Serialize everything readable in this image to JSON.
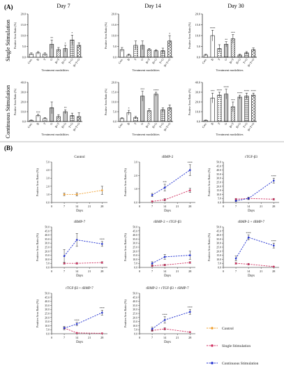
{
  "panel_a": {
    "label": "(A)",
    "day_headers": [
      "Day 7",
      "Day 14",
      "Day 30"
    ],
    "row_labels": [
      "Single Stimulation",
      "Continuous Stimulation"
    ],
    "categories": [
      "Con.",
      "B",
      "T",
      "O",
      "B+T",
      "B+O",
      "T+O",
      "B+T+O"
    ],
    "xlabel": "Treatment modalities",
    "ylabel": "Positive Area Ratio (%)"
  },
  "panel_b": {
    "label": "(B)",
    "xlabel": "Days",
    "ylabel": "Positive Area Ratio (%)",
    "legend": [
      {
        "name": "Control",
        "color": "#f0a030"
      },
      {
        "name": "Single Stimulation",
        "color": "#d03060"
      },
      {
        "name": "Continuous Stimulation",
        "color": "#2030d0"
      }
    ]
  },
  "chart_data": [
    {
      "type": "bar",
      "panel": "A",
      "row": "Single Stimulation",
      "day": "Day 7",
      "categories": [
        "Con.",
        "B",
        "T",
        "O",
        "B+T",
        "B+O",
        "T+O",
        "B+T+O"
      ],
      "values": [
        1.5,
        2,
        1.5,
        6,
        3.5,
        4,
        8,
        5.5
      ],
      "errors": [
        0.5,
        0.6,
        0.5,
        2,
        1,
        1.5,
        2.2,
        1.2
      ],
      "sig": [
        "",
        "",
        "",
        "**",
        "",
        "*",
        "*",
        ""
      ],
      "ylim": [
        0,
        20
      ],
      "yticks": [
        0,
        5,
        10,
        15,
        20
      ],
      "xlabel": "Treatment modalities",
      "ylabel": "Positive Area Ratio (%)"
    },
    {
      "type": "bar",
      "panel": "A",
      "row": "Single Stimulation",
      "day": "Day 14",
      "categories": [
        "Con.",
        "B",
        "T",
        "O",
        "B+T",
        "B+O",
        "T+O",
        "B+T+O"
      ],
      "values": [
        3.5,
        1,
        5.5,
        5.5,
        3.5,
        3,
        3,
        7.5
      ],
      "errors": [
        1,
        0.5,
        2,
        2,
        0.6,
        0.5,
        1.2,
        2.5
      ],
      "sig": [
        "",
        "",
        "",
        "",
        "",
        "",
        "",
        "*"
      ],
      "ylim": [
        0,
        20
      ],
      "yticks": [
        0,
        5,
        10,
        15,
        20
      ],
      "xlabel": "Treatment modalities",
      "ylabel": "Positive Area Ratio (%)"
    },
    {
      "type": "bar",
      "panel": "A",
      "row": "Single Stimulation",
      "day": "Day 30",
      "categories": [
        "Con.",
        "B",
        "T",
        "O",
        "B+T",
        "B+O",
        "T+O",
        "B+T+O"
      ],
      "values": [
        1,
        10,
        4,
        6,
        8.5,
        1,
        2,
        3.5
      ],
      "errors": [
        0.4,
        2.5,
        1.8,
        1.2,
        2,
        0.4,
        0.6,
        0.8
      ],
      "sig": [
        "",
        "****",
        "",
        "**",
        "***",
        "",
        "",
        ""
      ],
      "ylim": [
        0,
        20
      ],
      "yticks": [
        0,
        5,
        10,
        15,
        20
      ],
      "xlabel": "Treatment modalities",
      "ylabel": "Positive Area Ratio (%)"
    },
    {
      "type": "bar",
      "panel": "A",
      "row": "Continuous Stimulation",
      "day": "Day 7",
      "categories": [
        "Con.",
        "B",
        "T",
        "O",
        "B+T",
        "B+O",
        "T+O",
        "B+T+O"
      ],
      "values": [
        1,
        6,
        3,
        14,
        5,
        10,
        6,
        5
      ],
      "errors": [
        0.5,
        1.5,
        1,
        6,
        2,
        2,
        2.5,
        4
      ],
      "sig": [
        "",
        "***",
        "",
        "",
        "",
        "**",
        "",
        ""
      ],
      "ylim": [
        0,
        40
      ],
      "yticks": [
        0,
        10,
        20,
        30,
        40
      ],
      "xlabel": "Treatment modalities",
      "ylabel": "Positive Area Ratio (%)"
    },
    {
      "type": "bar",
      "panel": "A",
      "row": "Continuous Stimulation",
      "day": "Day 14",
      "categories": [
        "Con.",
        "B",
        "T",
        "O",
        "B+T",
        "B+O",
        "T+O",
        "B+T+O"
      ],
      "values": [
        1.5,
        4.5,
        2,
        13,
        5.5,
        14,
        6,
        7
      ],
      "errors": [
        0.4,
        1.2,
        0.6,
        2.5,
        1,
        1,
        1,
        1.5
      ],
      "sig": [
        "",
        "*",
        "",
        "***",
        "",
        "****",
        "",
        ""
      ],
      "ylim": [
        0,
        20
      ],
      "yticks": [
        0,
        5,
        10,
        15,
        20
      ],
      "xlabel": "Treatment modalities",
      "ylabel": "Positive Area Ratio (%)"
    },
    {
      "type": "bar",
      "panel": "A",
      "row": "Continuous Stimulation",
      "day": "Day 30",
      "categories": [
        "Con.",
        "B",
        "T",
        "O",
        "B+T",
        "B+O",
        "T+O",
        "B+T+O"
      ],
      "values": [
        1,
        24,
        27,
        28,
        15,
        25,
        26,
        27
      ],
      "errors": [
        0.5,
        5,
        3,
        5,
        5,
        2,
        3,
        2
      ],
      "sig": [
        "",
        "***",
        "****",
        "****",
        "***",
        "****",
        "****",
        "****"
      ],
      "ylim": [
        0,
        40
      ],
      "yticks": [
        0,
        10,
        20,
        30,
        40
      ],
      "xlabel": "Treatment modalities",
      "ylabel": "Positive Area Ratio (%)"
    },
    {
      "type": "line",
      "panel": "B",
      "title": "Control",
      "x": [
        7,
        14,
        28
      ],
      "xticks": [
        0,
        7,
        14,
        21,
        28
      ],
      "xlim": [
        0,
        31
      ],
      "ylim": [
        0,
        5
      ],
      "yticks": [
        0,
        1,
        2,
        3,
        4,
        5
      ],
      "series": [
        {
          "name": "Control",
          "color": "#f0a030",
          "values": [
            1,
            1,
            1.5
          ],
          "errors": [
            0.15,
            0.2,
            0.5
          ]
        }
      ]
    },
    {
      "type": "line",
      "panel": "B",
      "title": "rBMP-2",
      "x": [
        7,
        14,
        28
      ],
      "xticks": [
        0,
        7,
        14,
        21,
        28
      ],
      "xlim": [
        0,
        31
      ],
      "ylim": [
        0,
        3
      ],
      "yticks": [
        0,
        1,
        2,
        3
      ],
      "series": [
        {
          "name": "Single Stimulation",
          "color": "#d03060",
          "values": [
            0.08,
            0.2,
            0.9
          ],
          "errors": [
            0.03,
            0.08,
            0.15
          ]
        },
        {
          "name": "Continuous Stimulation",
          "color": "#2030d0",
          "values": [
            0.55,
            1.1,
            2.4
          ],
          "errors": [
            0.12,
            0.25,
            0.4
          ]
        }
      ],
      "sig": [
        "",
        "***",
        "****"
      ]
    },
    {
      "type": "line",
      "panel": "B",
      "title": "rTGF-β3",
      "x": [
        7,
        14,
        28
      ],
      "xticks": [
        0,
        7,
        14,
        21,
        28
      ],
      "xlim": [
        0,
        31
      ],
      "ylim": [
        0,
        50
      ],
      "yticks": [
        0,
        5,
        10,
        15,
        20,
        25,
        30,
        35,
        40,
        45,
        50
      ],
      "series": [
        {
          "name": "Single Stimulation",
          "color": "#d03060",
          "values": [
            4,
            5,
            4
          ],
          "errors": [
            1,
            1,
            1
          ]
        },
        {
          "name": "Continuous Stimulation",
          "color": "#2030d0",
          "values": [
            2,
            5,
            27
          ],
          "errors": [
            1,
            1.5,
            3
          ]
        }
      ],
      "sig": [
        "",
        "",
        "****"
      ]
    },
    {
      "type": "line",
      "panel": "B",
      "title": "rBMP-7",
      "x": [
        7,
        14,
        28
      ],
      "xticks": [
        0,
        7,
        14,
        21,
        28
      ],
      "xlim": [
        0,
        31
      ],
      "ylim": [
        0,
        50
      ],
      "yticks": [
        0,
        5,
        10,
        15,
        20,
        25,
        30,
        35,
        40,
        45,
        50
      ],
      "series": [
        {
          "name": "Single Stimulation",
          "color": "#d03060",
          "values": [
            5,
            5,
            6
          ],
          "errors": [
            1,
            1,
            1
          ]
        },
        {
          "name": "Continuous Stimulation",
          "color": "#2030d0",
          "values": [
            14,
            34,
            29
          ],
          "errors": [
            8,
            8,
            3
          ]
        }
      ],
      "sig": [
        "",
        "",
        "****"
      ]
    },
    {
      "type": "line",
      "panel": "B",
      "title": "rBMP-2 + rTGF-β3",
      "x": [
        7,
        14,
        28
      ],
      "xticks": [
        0,
        7,
        14,
        21,
        28
      ],
      "xlim": [
        0,
        31
      ],
      "ylim": [
        0,
        50
      ],
      "yticks": [
        0,
        5,
        10,
        15,
        20,
        25,
        30,
        35,
        40,
        45,
        50
      ],
      "series": [
        {
          "name": "Single Stimulation",
          "color": "#d03060",
          "values": [
            2,
            3,
            6
          ],
          "errors": [
            1,
            1,
            1
          ]
        },
        {
          "name": "Continuous Stimulation",
          "color": "#2030d0",
          "values": [
            5,
            13,
            15
          ],
          "errors": [
            2,
            3,
            5
          ]
        }
      ],
      "sig": [
        "",
        "",
        ""
      ]
    },
    {
      "type": "line",
      "panel": "B",
      "title": "rBMP-2 + rBMP-7",
      "x": [
        7,
        14,
        28
      ],
      "xticks": [
        0,
        7,
        14,
        21,
        28
      ],
      "xlim": [
        0,
        31
      ],
      "ylim": [
        0,
        50
      ],
      "yticks": [
        0,
        5,
        10,
        15,
        20,
        25,
        30,
        35,
        40,
        45,
        50
      ],
      "series": [
        {
          "name": "Single Stimulation",
          "color": "#d03060",
          "values": [
            5,
            4,
            1
          ],
          "errors": [
            1,
            1,
            0.5
          ]
        },
        {
          "name": "Continuous Stimulation",
          "color": "#2030d0",
          "values": [
            11,
            37,
            27
          ],
          "errors": [
            3,
            3,
            3
          ]
        }
      ],
      "sig": [
        "",
        "****",
        "****"
      ]
    },
    {
      "type": "line",
      "panel": "B",
      "title": "rTGF-β3 + rBMP-7",
      "x": [
        7,
        14,
        28
      ],
      "xticks": [
        0,
        7,
        14,
        21,
        28
      ],
      "xlim": [
        0,
        31
      ],
      "ylim": [
        0,
        50
      ],
      "yticks": [
        0,
        5,
        10,
        15,
        20,
        25,
        30,
        35,
        40,
        45,
        50
      ],
      "series": [
        {
          "name": "Single Stimulation",
          "color": "#d03060",
          "values": [
            7,
            1,
            0.5
          ],
          "errors": [
            1,
            0.5,
            0.5
          ]
        },
        {
          "name": "Continuous Stimulation",
          "color": "#2030d0",
          "values": [
            7,
            12,
            26
          ],
          "errors": [
            2,
            2,
            3
          ]
        }
      ],
      "sig": [
        "",
        "****",
        "****"
      ]
    },
    {
      "type": "line",
      "panel": "B",
      "title": "rBMP-2 + rTGF-β3 + rBMP-7",
      "x": [
        7,
        14,
        28
      ],
      "xticks": [
        0,
        7,
        14,
        21,
        28
      ],
      "xlim": [
        0,
        31
      ],
      "ylim": [
        0,
        50
      ],
      "yticks": [
        0,
        5,
        10,
        15,
        20,
        25,
        30,
        35,
        40,
        45,
        50
      ],
      "series": [
        {
          "name": "Single Stimulation",
          "color": "#d03060",
          "values": [
            4,
            6,
            2
          ],
          "errors": [
            1,
            1.5,
            0.5
          ]
        },
        {
          "name": "Continuous Stimulation",
          "color": "#2030d0",
          "values": [
            6,
            17,
            27
          ],
          "errors": [
            2,
            4,
            3
          ]
        }
      ],
      "sig": [
        "",
        "****",
        "****"
      ]
    }
  ]
}
